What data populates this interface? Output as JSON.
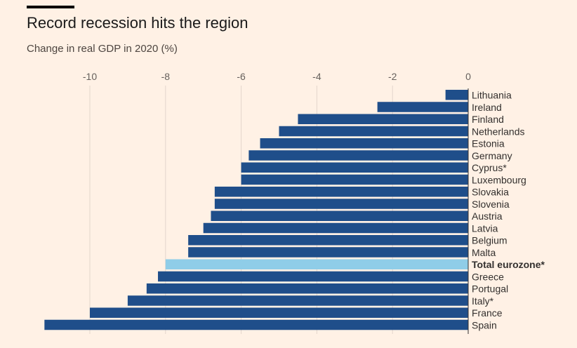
{
  "title": "Record recession hits the region",
  "subtitle": "Change in real GDP in 2020 (%)",
  "colors": {
    "bar": "#1f4e8a",
    "highlight": "#8fcde8",
    "background": "#fff1e5"
  },
  "chart_data": {
    "type": "bar",
    "orientation": "horizontal",
    "title": "Record recession hits the region",
    "subtitle": "Change in real GDP in 2020 (%)",
    "xlabel": "",
    "ylabel": "",
    "xlim": [
      -11.2,
      0
    ],
    "x_ticks": [
      -10,
      -8,
      -6,
      -4,
      -2,
      0
    ],
    "grid": true,
    "categories": [
      "Lithuania",
      "Ireland",
      "Finland",
      "Netherlands",
      "Estonia",
      "Germany",
      "Cyprus*",
      "Luxembourg",
      "Slovakia",
      "Slovenia",
      "Austria",
      "Latvia",
      "Belgium",
      "Malta",
      "Total eurozone*",
      "Greece",
      "Portugal",
      "Italy*",
      "France",
      "Spain"
    ],
    "values": [
      -0.6,
      -2.4,
      -4.5,
      -5.0,
      -5.5,
      -5.8,
      -6.0,
      -6.0,
      -6.7,
      -6.7,
      -6.8,
      -7.0,
      -7.4,
      -7.4,
      -8.0,
      -8.2,
      -8.5,
      -9.0,
      -10.0,
      -11.2
    ],
    "highlight": "Total eurozone*"
  }
}
